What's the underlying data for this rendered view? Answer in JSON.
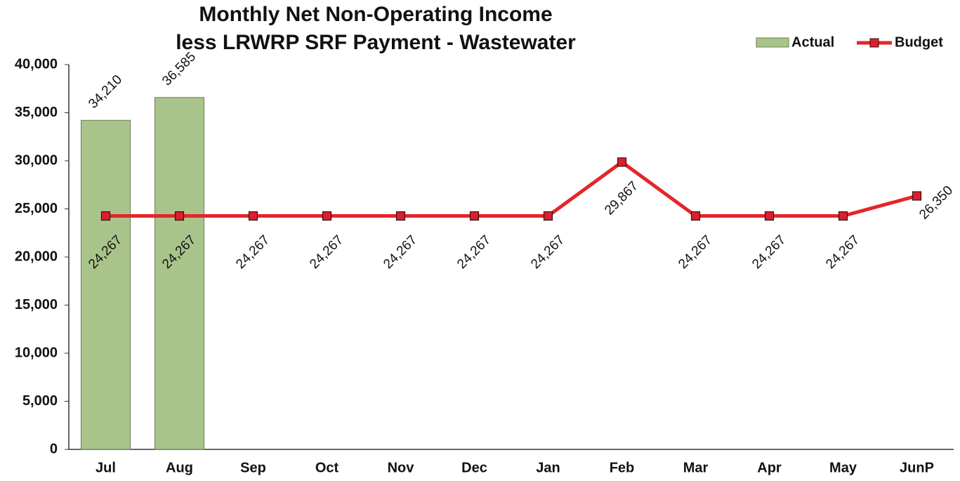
{
  "chart_data": {
    "type": "combo",
    "title": [
      "Monthly Net Non-Operating Income",
      "less LRWRP SRF Payment - Wastewater"
    ],
    "categories": [
      "Jul",
      "Aug",
      "Sep",
      "Oct",
      "Nov",
      "Dec",
      "Jan",
      "Feb",
      "Mar",
      "Apr",
      "May",
      "JunP"
    ],
    "series": [
      {
        "name": "Actual",
        "type": "bar",
        "color": "#a9c48a",
        "values": [
          34210,
          36585,
          null,
          null,
          null,
          null,
          null,
          null,
          null,
          null,
          null,
          null
        ],
        "value_labels": [
          "34,210",
          "36,585",
          null,
          null,
          null,
          null,
          null,
          null,
          null,
          null,
          null,
          null
        ]
      },
      {
        "name": "Budget",
        "type": "line",
        "color": "#e3262b",
        "values": [
          24267,
          24267,
          24267,
          24267,
          24267,
          24267,
          24267,
          29867,
          24267,
          24267,
          24267,
          26350
        ],
        "value_labels": [
          "24,267",
          "24,267",
          "24,267",
          "24,267",
          "24,267",
          "24,267",
          "24,267",
          "29,867",
          "24,267",
          "24,267",
          "24,267",
          "26,350"
        ]
      }
    ],
    "ylim": [
      0,
      40000
    ],
    "yticks": [
      0,
      {
        "value": 5000,
        "label": "5,000"
      },
      {
        "value": 10000,
        "label": "10,000"
      },
      {
        "value": 15000,
        "label": "15,000"
      },
      {
        "value": 20000,
        "label": "20,000"
      },
      {
        "value": 25000,
        "label": "25,000"
      },
      {
        "value": 30000,
        "label": "30,000"
      },
      {
        "value": 35000,
        "label": "35,000"
      },
      {
        "value": 40000,
        "label": "40,000"
      }
    ],
    "legend": "top-right"
  }
}
